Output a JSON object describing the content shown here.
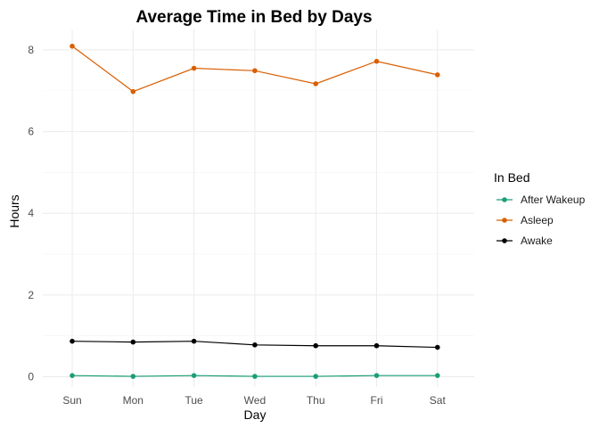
{
  "chart_data": {
    "type": "line",
    "title": "Average Time in Bed by Days",
    "xlabel": "Day",
    "ylabel": "Hours",
    "categories": [
      "Sun",
      "Mon",
      "Tue",
      "Wed",
      "Thu",
      "Fri",
      "Sat"
    ],
    "ylim": [
      -0.25,
      8.5
    ],
    "yticks": [
      0,
      2,
      4,
      6,
      8
    ],
    "grid": true,
    "legend": {
      "title": "In Bed",
      "position": "right"
    },
    "series": [
      {
        "name": "After Wakeup",
        "color": "#1b9e77",
        "values": [
          0.03,
          0.01,
          0.03,
          0.01,
          0.01,
          0.03,
          0.03
        ]
      },
      {
        "name": "Asleep",
        "color": "#d95f02",
        "values": [
          8.09,
          6.98,
          7.55,
          7.49,
          7.17,
          7.72,
          7.39
        ]
      },
      {
        "name": "Awake",
        "color": "#000000",
        "values": [
          0.87,
          0.85,
          0.87,
          0.78,
          0.76,
          0.76,
          0.72
        ]
      }
    ]
  }
}
